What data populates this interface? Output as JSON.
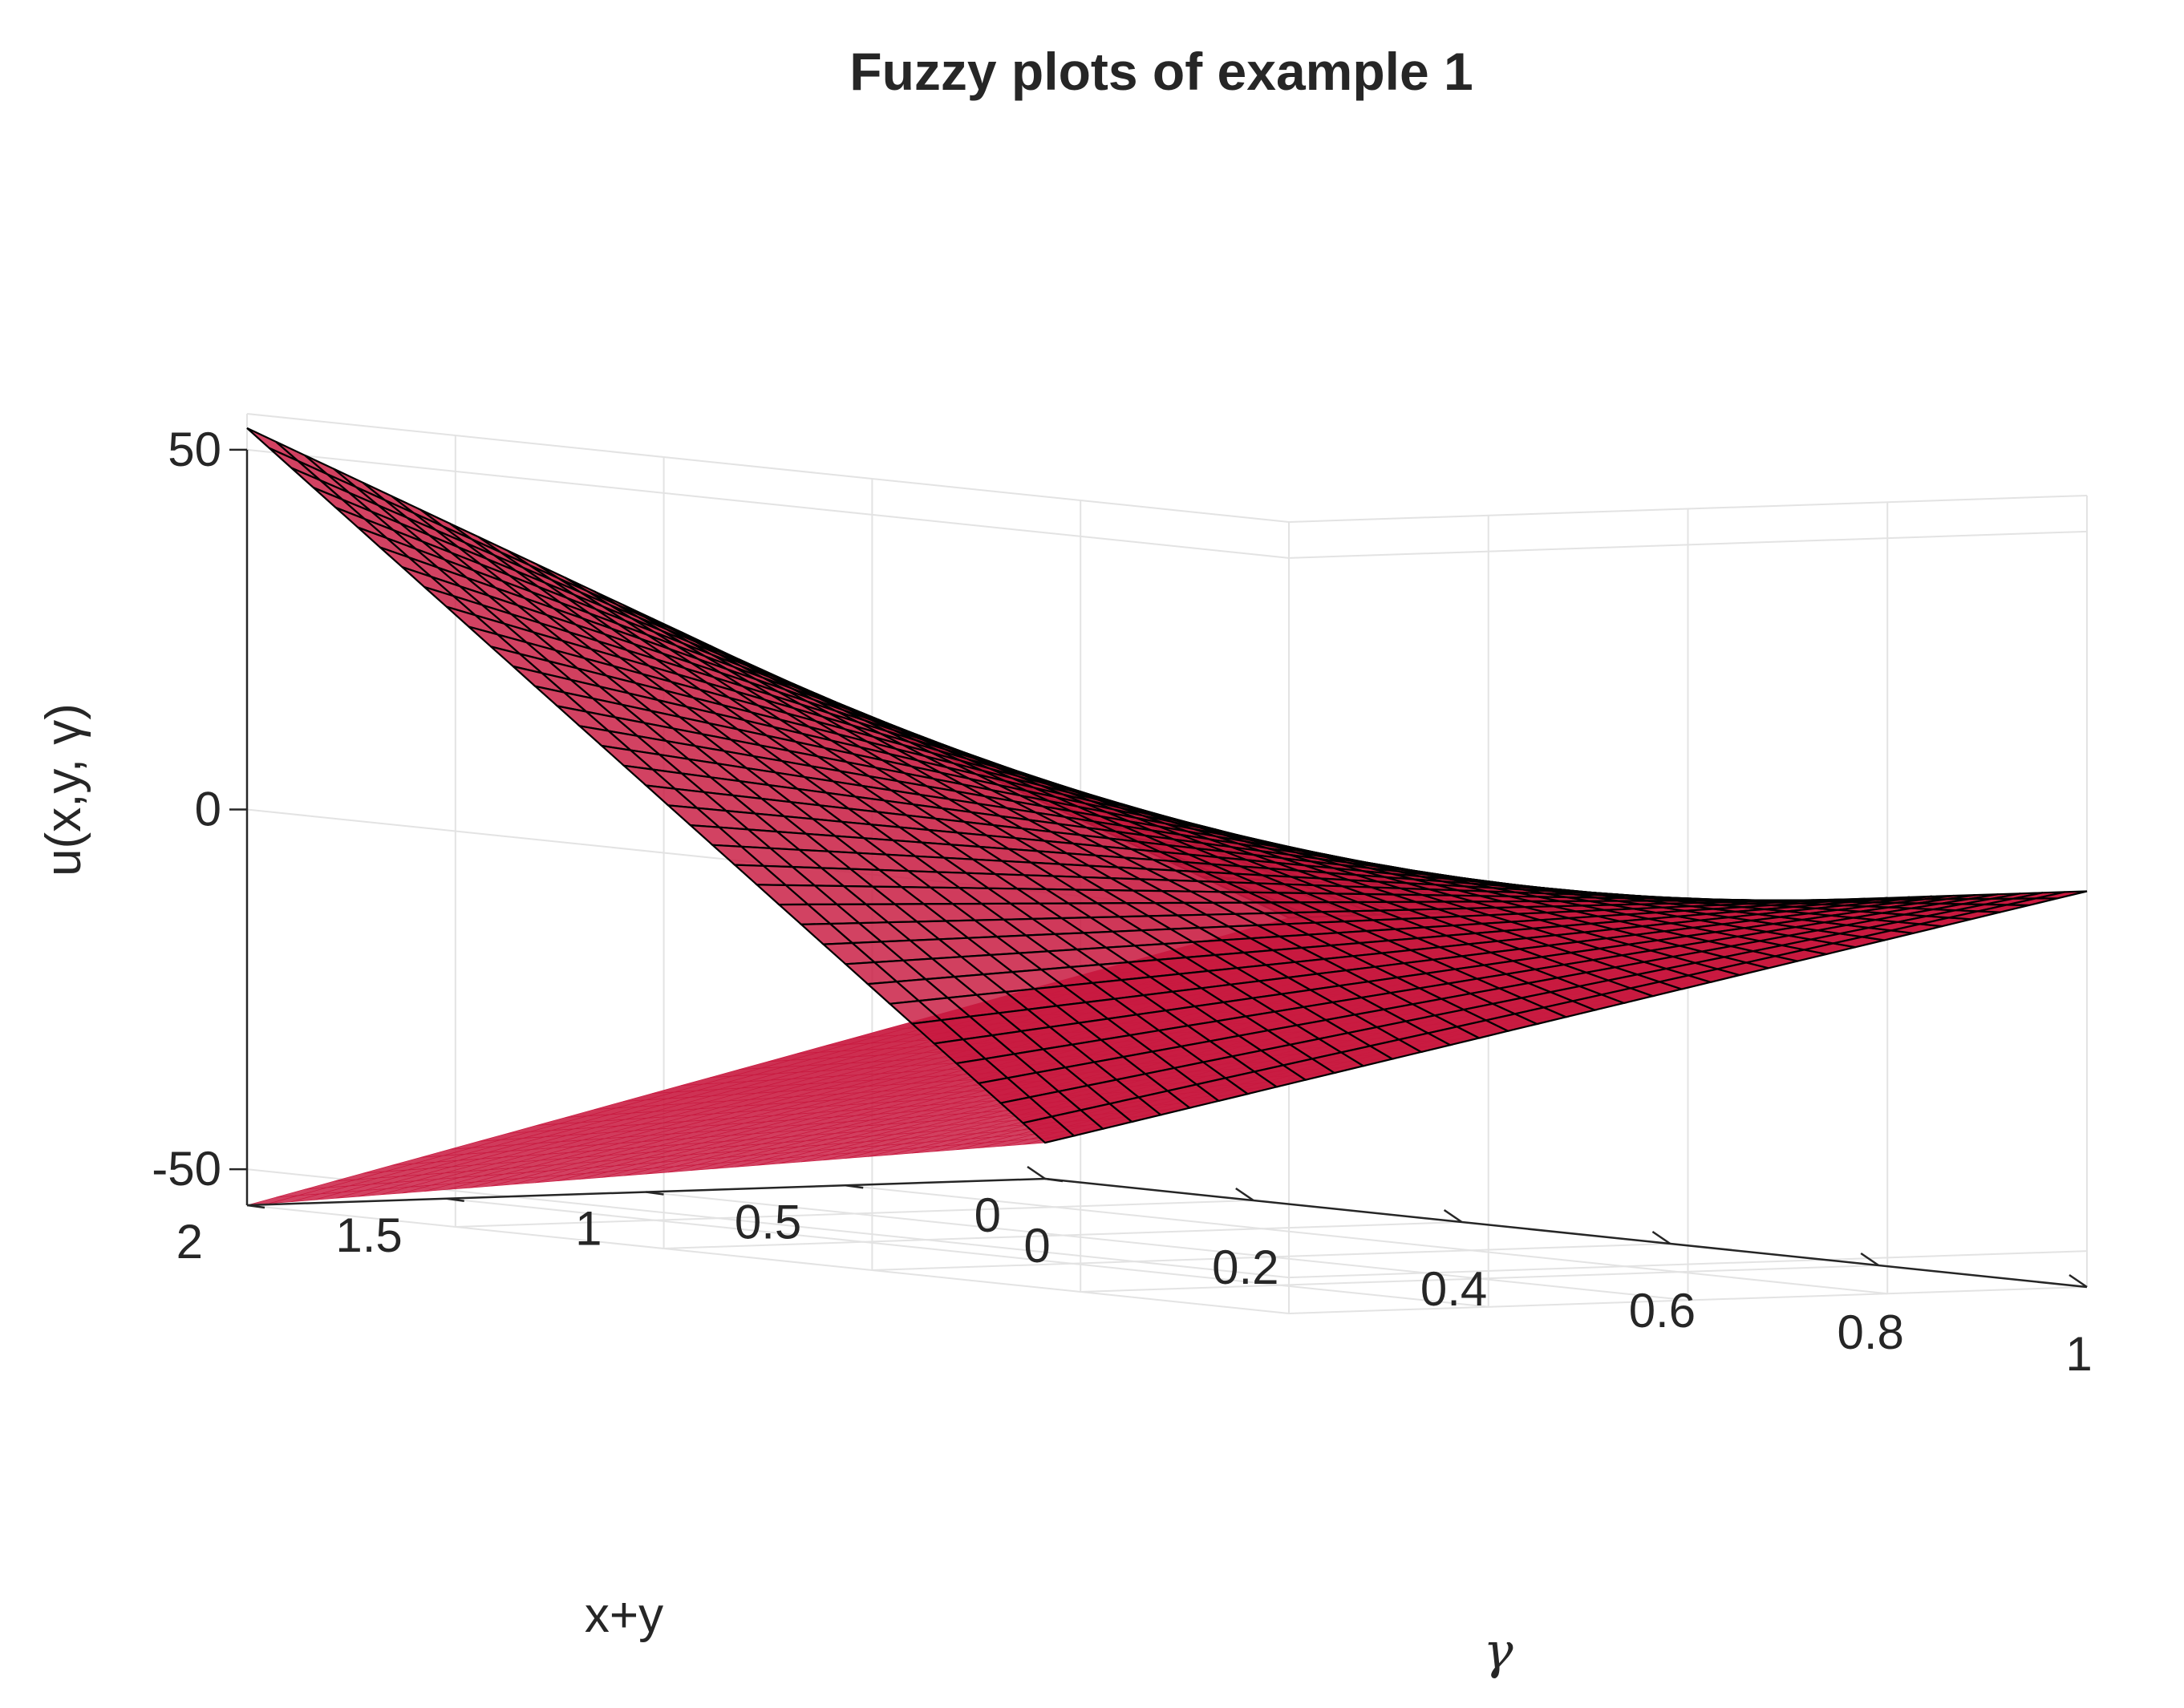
{
  "chart_data": {
    "type": "surface",
    "title": "Fuzzy plots of example 1",
    "xlabel": "γ",
    "ylabel": "x+y",
    "zlabel": "u(x,y, γ)",
    "xlim": [
      0,
      1
    ],
    "ylim": [
      0,
      2
    ],
    "zlim": [
      -55,
      55
    ],
    "xticks": [
      "0",
      "0.2",
      "0.4",
      "0.6",
      "0.8",
      "1"
    ],
    "yticks": [
      "0",
      "0.5",
      "1",
      "1.5",
      "2"
    ],
    "zticks": [
      "-50",
      "0",
      "50"
    ],
    "grid": true,
    "surface_color": "#c8193f",
    "edge_color": "#000000",
    "series": [
      {
        "sheet": "upper",
        "corners": [
          {
            "x": 0,
            "y": 0,
            "z": -50
          },
          {
            "x": 1,
            "y": 0,
            "z": 0
          },
          {
            "x": 0,
            "y": 2,
            "z": 53
          },
          {
            "x": 1,
            "y": 2,
            "z": 0
          }
        ]
      },
      {
        "sheet": "lower",
        "corners": [
          {
            "x": 0,
            "y": 0,
            "z": -50
          },
          {
            "x": 1,
            "y": 0,
            "z": 0
          },
          {
            "x": 0,
            "y": 2,
            "z": -55
          },
          {
            "x": 1,
            "y": 2,
            "z": 0
          }
        ]
      }
    ]
  }
}
